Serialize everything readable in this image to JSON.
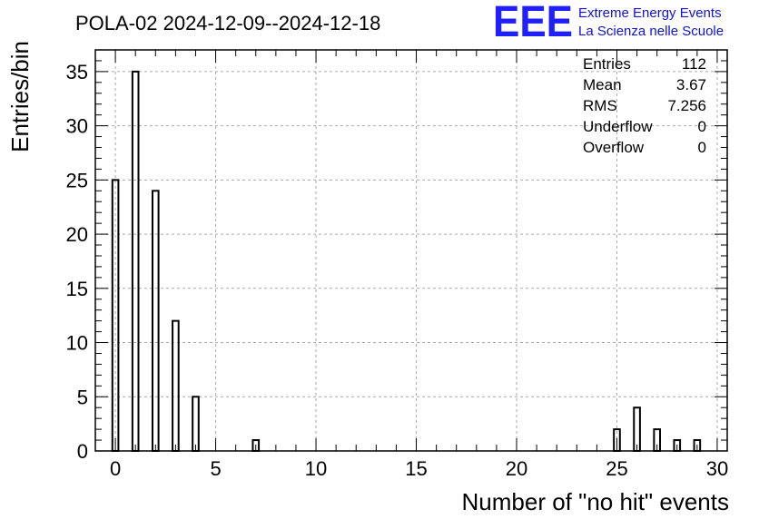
{
  "title": "POLA-02 2024-12-09--2024-12-18",
  "logo": {
    "mark": "EEE",
    "line1": "Extreme Energy Events",
    "line2": "La Scienza nelle Scuole",
    "color": "#1f1fff"
  },
  "stats": [
    {
      "label": "Entries",
      "value": "112"
    },
    {
      "label": "Mean",
      "value": "3.67"
    },
    {
      "label": "RMS",
      "value": "7.256"
    },
    {
      "label": "Underflow",
      "value": "0"
    },
    {
      "label": "Overflow",
      "value": "0"
    }
  ],
  "chart_data": {
    "type": "bar",
    "xlabel": "Number of \"no hit\" events",
    "ylabel": "Entries/bin",
    "xlim": [
      -1,
      30.5
    ],
    "ylim": [
      0,
      37
    ],
    "xticks": [
      0,
      5,
      10,
      15,
      20,
      25,
      30
    ],
    "yticks": [
      0,
      5,
      10,
      15,
      20,
      25,
      30,
      35
    ],
    "grid": true,
    "bin_width": 0.3,
    "bins": [
      {
        "x": 0,
        "value": 25
      },
      {
        "x": 1,
        "value": 35
      },
      {
        "x": 2,
        "value": 24
      },
      {
        "x": 3,
        "value": 12
      },
      {
        "x": 4,
        "value": 5
      },
      {
        "x": 7,
        "value": 1
      },
      {
        "x": 25,
        "value": 2
      },
      {
        "x": 26,
        "value": 4
      },
      {
        "x": 27,
        "value": 2
      },
      {
        "x": 28,
        "value": 1
      },
      {
        "x": 29,
        "value": 1
      }
    ]
  }
}
